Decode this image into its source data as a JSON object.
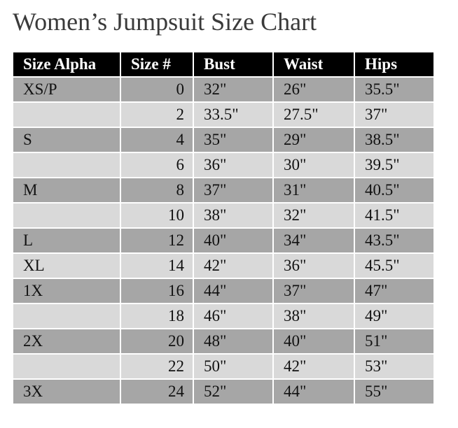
{
  "title": "Women’s Jumpsuit Size Chart",
  "colors": {
    "header_bg": "#000000",
    "row_dark": "#a6a6a6",
    "row_light": "#d9d9d9"
  },
  "headers": [
    "Size Alpha",
    "Size #",
    "Bust",
    "Waist",
    "Hips"
  ],
  "rows": [
    [
      "XS/P",
      "0",
      "32\"",
      "26\"",
      "35.5\""
    ],
    [
      "",
      "2",
      "33.5\"",
      "27.5\"",
      "37\""
    ],
    [
      "S",
      "4",
      "35\"",
      "29\"",
      "38.5\""
    ],
    [
      "",
      "6",
      "36\"",
      "30\"",
      "39.5\""
    ],
    [
      "M",
      "8",
      "37\"",
      "31\"",
      "40.5\""
    ],
    [
      "",
      "10",
      "38\"",
      "32\"",
      "41.5\""
    ],
    [
      "L",
      "12",
      "40\"",
      "34\"",
      "43.5\""
    ],
    [
      "XL",
      "14",
      "42\"",
      "36\"",
      "45.5\""
    ],
    [
      "1X",
      "16",
      "44\"",
      "37\"",
      "47\""
    ],
    [
      "",
      "18",
      "46\"",
      "38\"",
      "49\""
    ],
    [
      "2X",
      "20",
      "48\"",
      "40\"",
      "51\""
    ],
    [
      "",
      "22",
      "50\"",
      "42\"",
      "53\""
    ],
    [
      "3X",
      "24",
      "52\"",
      "44\"",
      "55\""
    ]
  ]
}
